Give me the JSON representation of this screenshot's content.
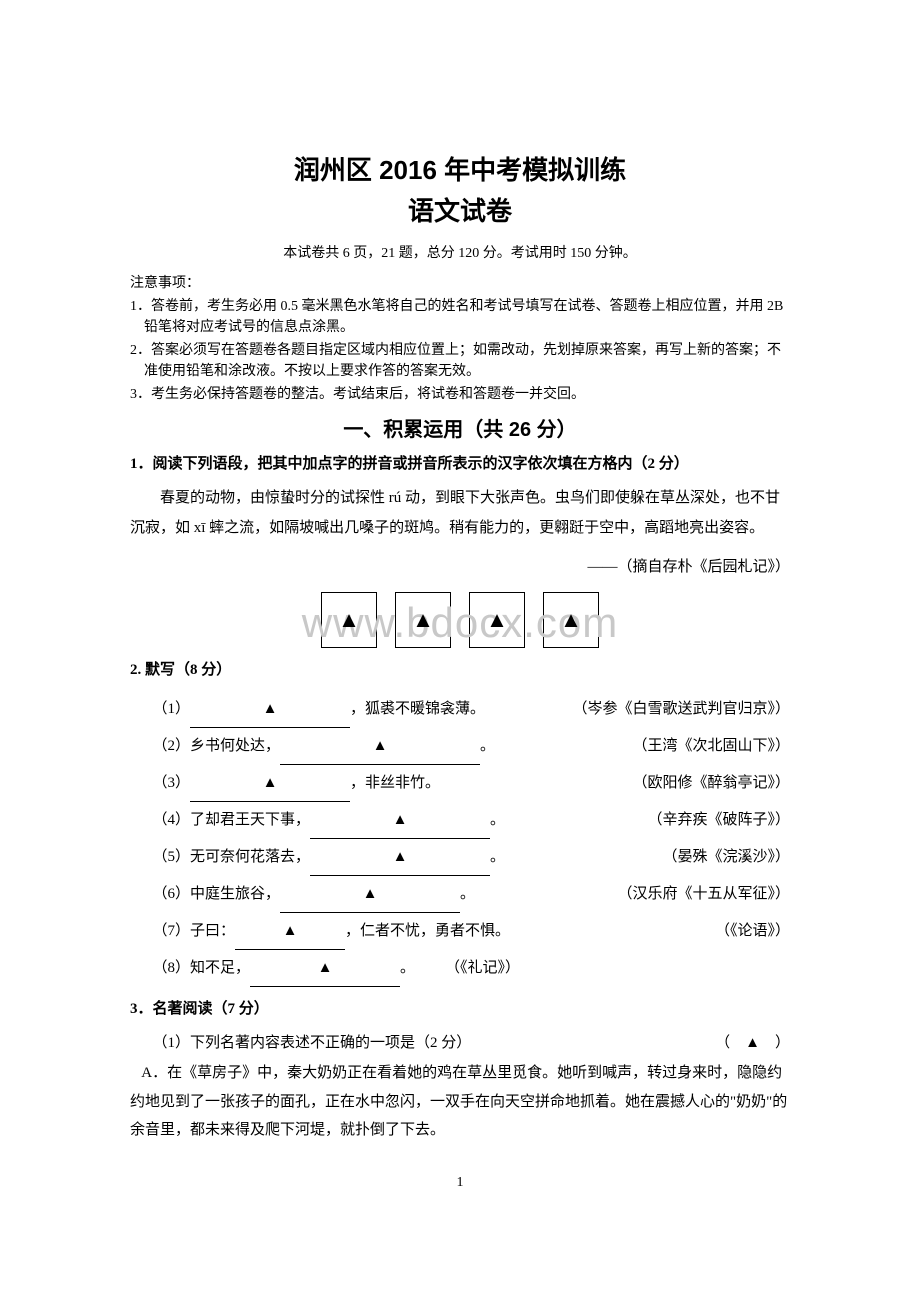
{
  "header": {
    "title1": "润州区 2016 年中考模拟训练",
    "title2": "语文试卷",
    "info": "本试卷共 6 页，21 题，总分 120 分。考试用时 150 分钟。",
    "notice_title": "注意事项：",
    "notice_items": [
      "1．答卷前，考生务必用 0.5 毫米黑色水笔将自己的姓名和考试号填写在试卷、答题卷上相应位置，并用 2B 铅笔将对应考试号的信息点涂黑。",
      "2．答案必须写在答题卷各题目指定区域内相应位置上；如需改动，先划掉原来答案，再写上新的答案；不准使用铅笔和涂改液。不按以上要求作答的答案无效。",
      "3．考生务必保持答题卷的整洁。考试结束后，将试卷和答题卷一并交回。"
    ]
  },
  "section1": {
    "heading": "一、积累运用（共 26 分）"
  },
  "q1": {
    "heading": "1．阅读下列语段，把其中加点字的拼音或拼音所表示的汉字依次填在方格内（2 分）",
    "paragraph": "春夏的动物，由惊蛰时分的试探性 rú 动，到眼下大张声色。虫鸟们即使躲在草丛深处，也不甘沉寂，如 xī 蟀之流，如隔坡喊出几嗓子的斑鸠。稍有能力的，更翱跹于空中，高蹈地亮出姿容。",
    "citation": "——（摘自存朴《后园札记》）",
    "box_marks": [
      "▲",
      "▲",
      "▲",
      "▲"
    ],
    "watermark": "www.bdocx.com"
  },
  "q2": {
    "heading": "2. 默写（8 分）",
    "items": [
      {
        "num": "（1）",
        "blank_before": true,
        "blank_width": 160,
        "text": "，狐裘不暖锦衾薄。",
        "src": "（岑参《白雪歌送武判官归京》）"
      },
      {
        "num": "（2）",
        "pretext": "乡书何处达，",
        "blank_width": 200,
        "suffix": "。",
        "src": "（王湾《次北固山下》）"
      },
      {
        "num": "（3）",
        "blank_before": true,
        "blank_width": 160,
        "text": "，非丝非竹。",
        "src": "（欧阳修《醉翁亭记》）"
      },
      {
        "num": "（4）",
        "pretext": "了却君王天下事，",
        "blank_width": 180,
        "suffix": "。",
        "src": "（辛弃疾《破阵子》）"
      },
      {
        "num": "（5）",
        "pretext": "无可奈何花落去，",
        "blank_width": 180,
        "suffix": "。",
        "src": "（晏殊《浣溪沙》）"
      },
      {
        "num": "（6）",
        "pretext": "中庭生旅谷，",
        "blank_width": 180,
        "suffix": "。",
        "src": "（汉乐府《十五从军征》）"
      },
      {
        "num": "（7）",
        "pretext": "子曰：",
        "blank_width": 110,
        "text": "，仁者不忧，勇者不惧。",
        "src": "（《论语》）"
      },
      {
        "num": "（8）",
        "pretext": "知不足，",
        "blank_width": 150,
        "suffix": "。",
        "src_inline": "（《礼记》）"
      }
    ]
  },
  "q3": {
    "heading": "3．名著阅读（7 分）",
    "sub1": "（1）下列名著内容表述不正确的一项是（2 分）",
    "paren": "（　▲　）",
    "option_a": "A．在《草房子》中，秦大奶奶正在看着她的鸡在草丛里觅食。她听到喊声，转过身来时，隐隐约约地见到了一张孩子的面孔，正在水中忽闪，一双手在向天空拼命地抓着。她在震撼人心的\"奶奶\"的余音里，都未来得及爬下河堤，就扑倒了下去。"
  },
  "page_number": "1"
}
